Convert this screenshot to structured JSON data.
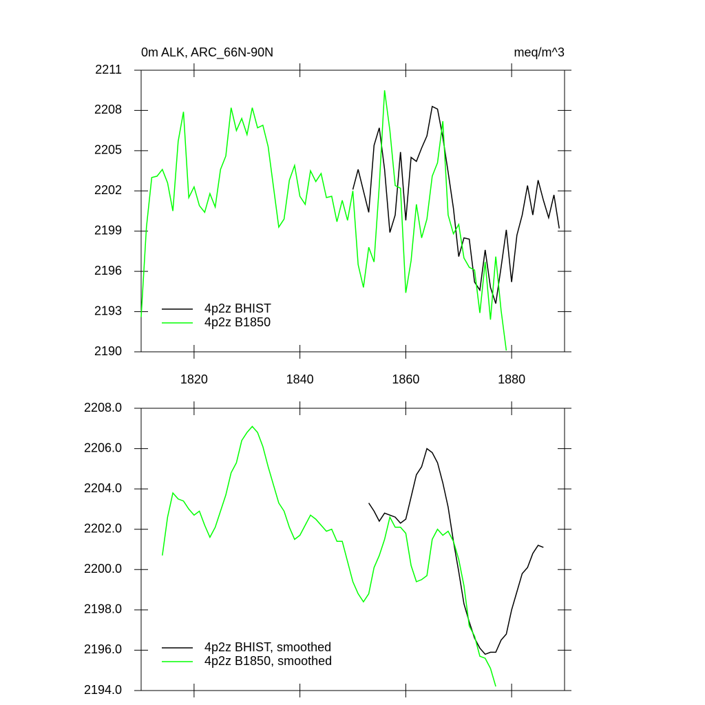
{
  "chart_data": [
    {
      "type": "line",
      "title": "0m ALK, ARC_66N-90N",
      "units": "meq/m^3",
      "xlim": [
        1810,
        1890
      ],
      "xticks": [
        1820,
        1840,
        1860,
        1880
      ],
      "xtick_labels": true,
      "ylim": [
        2190,
        2211
      ],
      "yticks": [
        2190,
        2193,
        2196,
        2199,
        2202,
        2205,
        2208,
        2211
      ],
      "legend": "lower left",
      "series": [
        {
          "name": "4p2z BHIST",
          "color": "#000000",
          "x": [
            1850,
            1851,
            1852,
            1853,
            1854,
            1855,
            1856,
            1857,
            1858,
            1859,
            1860,
            1861,
            1862,
            1863,
            1864,
            1865,
            1866,
            1867,
            1868,
            1869,
            1870,
            1871,
            1872,
            1873,
            1874,
            1875,
            1876,
            1877,
            1878,
            1879,
            1880,
            1881,
            1882,
            1883,
            1884,
            1885,
            1886,
            1887,
            1888,
            1889
          ],
          "values": [
            2202.1,
            2203.6,
            2202.0,
            2200.4,
            2205.4,
            2206.7,
            2203.6,
            2198.9,
            2200.2,
            2204.9,
            2199.8,
            2204.5,
            2204.2,
            2205.2,
            2206.1,
            2208.3,
            2208.1,
            2206.0,
            2203.4,
            2200.7,
            2197.1,
            2198.5,
            2198.4,
            2195.2,
            2194.6,
            2197.6,
            2194.8,
            2193.6,
            2196.3,
            2199.1,
            2195.2,
            2198.7,
            2200.2,
            2202.4,
            2200.2,
            2202.8,
            2201.3,
            2200.0,
            2201.7,
            2199.2
          ]
        },
        {
          "name": "4p2z B1850",
          "color": "#00ff00",
          "x": [
            1810,
            1811,
            1812,
            1813,
            1814,
            1815,
            1816,
            1817,
            1818,
            1819,
            1820,
            1821,
            1822,
            1823,
            1824,
            1825,
            1826,
            1827,
            1828,
            1829,
            1830,
            1831,
            1832,
            1833,
            1834,
            1835,
            1836,
            1837,
            1838,
            1839,
            1840,
            1841,
            1842,
            1843,
            1844,
            1845,
            1846,
            1847,
            1848,
            1849,
            1850,
            1851,
            1852,
            1853,
            1854,
            1855,
            1856,
            1857,
            1858,
            1859,
            1860,
            1861,
            1862,
            1863,
            1864,
            1865,
            1866,
            1867,
            1868,
            1869,
            1870,
            1871,
            1872,
            1873,
            1874,
            1875,
            1876,
            1877,
            1878,
            1879
          ],
          "values": [
            2192.6,
            2199.3,
            2203.0,
            2203.1,
            2203.6,
            2202.6,
            2200.5,
            2205.7,
            2207.9,
            2201.5,
            2202.3,
            2200.9,
            2200.4,
            2201.8,
            2200.8,
            2203.6,
            2204.6,
            2208.2,
            2206.5,
            2207.4,
            2206.2,
            2208.2,
            2206.7,
            2206.9,
            2205.3,
            2202.3,
            2199.3,
            2199.9,
            2202.8,
            2203.9,
            2201.6,
            2201.0,
            2203.5,
            2202.7,
            2203.3,
            2201.5,
            2201.6,
            2199.7,
            2201.3,
            2199.8,
            2202.0,
            2196.5,
            2194.8,
            2197.8,
            2196.7,
            2202.4,
            2209.5,
            2206.5,
            2202.4,
            2202.2,
            2194.4,
            2196.8,
            2201.0,
            2198.5,
            2199.9,
            2203.1,
            2204.1,
            2207.2,
            2200.2,
            2198.8,
            2199.5,
            2197.0,
            2196.3,
            2196.1,
            2192.9,
            2196.7,
            2192.4,
            2197.1,
            2193.1,
            2190.1
          ]
        }
      ]
    },
    {
      "type": "line",
      "xlim": [
        1810,
        1890
      ],
      "xticks": [
        1820,
        1840,
        1860,
        1880
      ],
      "xtick_labels": false,
      "ylim": [
        2194,
        2208
      ],
      "yticks": [
        {
          "value": 2194,
          "label": "2194.0"
        },
        {
          "value": 2196,
          "label": "2196.0"
        },
        {
          "value": 2198,
          "label": "2198.0"
        },
        {
          "value": 2200,
          "label": "2200.0"
        },
        {
          "value": 2202,
          "label": "2202.0"
        },
        {
          "value": 2204,
          "label": "2204.0"
        },
        {
          "value": 2206,
          "label": "2206.0"
        },
        {
          "value": 2208,
          "label": "2208.0"
        }
      ],
      "legend": "lower left",
      "series": [
        {
          "name": "4p2z BHIST, smoothed",
          "color": "#000000",
          "x": [
            1853,
            1854,
            1855,
            1856,
            1857,
            1858,
            1859,
            1860,
            1861,
            1862,
            1863,
            1864,
            1865,
            1866,
            1867,
            1868,
            1869,
            1870,
            1871,
            1872,
            1873,
            1874,
            1875,
            1876,
            1877,
            1878,
            1879,
            1880,
            1881,
            1882,
            1883,
            1884,
            1885,
            1886
          ],
          "values": [
            2203.3,
            2202.9,
            2202.4,
            2202.8,
            2202.7,
            2202.6,
            2202.3,
            2202.5,
            2203.6,
            2204.7,
            2205.1,
            2206.0,
            2205.8,
            2205.3,
            2204.3,
            2203.1,
            2201.4,
            2199.9,
            2198.3,
            2197.4,
            2196.6,
            2196.1,
            2195.8,
            2195.9,
            2195.9,
            2196.5,
            2196.8,
            2198.0,
            2198.9,
            2199.8,
            2200.1,
            2200.8,
            2201.2,
            2201.1
          ]
        },
        {
          "name": "4p2z B1850, smoothed",
          "color": "#00ff00",
          "x": [
            1814,
            1815,
            1816,
            1817,
            1818,
            1819,
            1820,
            1821,
            1822,
            1823,
            1824,
            1825,
            1826,
            1827,
            1828,
            1829,
            1830,
            1831,
            1832,
            1833,
            1834,
            1835,
            1836,
            1837,
            1838,
            1839,
            1840,
            1841,
            1842,
            1843,
            1844,
            1845,
            1846,
            1847,
            1848,
            1849,
            1850,
            1851,
            1852,
            1853,
            1854,
            1855,
            1856,
            1857,
            1858,
            1859,
            1860,
            1861,
            1862,
            1863,
            1864,
            1865,
            1866,
            1867,
            1868,
            1869,
            1870,
            1871,
            1872,
            1873,
            1874,
            1875,
            1876,
            1877
          ],
          "values": [
            2200.7,
            2202.6,
            2203.8,
            2203.5,
            2203.4,
            2203.0,
            2202.7,
            2202.9,
            2202.2,
            2201.6,
            2202.1,
            2202.9,
            2203.7,
            2204.8,
            2205.3,
            2206.4,
            2206.8,
            2207.1,
            2206.8,
            2206.1,
            2205.1,
            2204.2,
            2203.3,
            2202.9,
            2202.1,
            2201.5,
            2201.7,
            2202.2,
            2202.7,
            2202.5,
            2202.2,
            2201.9,
            2202.0,
            2201.4,
            2201.4,
            2200.4,
            2199.4,
            2198.8,
            2198.4,
            2198.8,
            2200.1,
            2200.7,
            2201.5,
            2202.6,
            2202.1,
            2202.1,
            2201.8,
            2200.2,
            2199.4,
            2199.5,
            2199.7,
            2201.5,
            2202.0,
            2201.7,
            2201.9,
            2201.4,
            2200.5,
            2199.2,
            2197.2,
            2196.7,
            2195.7,
            2195.6,
            2195.1,
            2194.2
          ]
        }
      ]
    }
  ]
}
